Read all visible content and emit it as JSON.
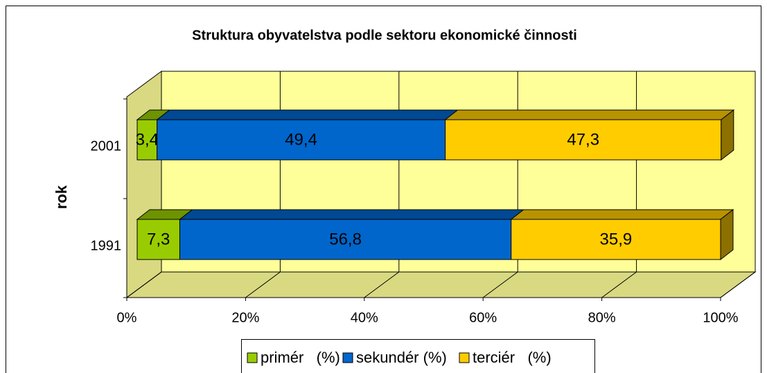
{
  "chart_data": {
    "type": "bar3d_stacked_horizontal",
    "title": "Struktura obyvatelstva podle sektoru ekonomické činnosti",
    "y_label": "rok",
    "categories": [
      "2001",
      "1991"
    ],
    "series": [
      {
        "name": "primér   (%)",
        "color": "#99cc00",
        "values": [
          3.4,
          7.3
        ],
        "value_labels": [
          "3,4",
          "7,3"
        ]
      },
      {
        "name": "sekundér (%)",
        "color": "#0066cc",
        "values": [
          49.4,
          56.8
        ],
        "value_labels": [
          "49,4",
          "56,8"
        ]
      },
      {
        "name": "terciér   (%)",
        "color": "#ffcc00",
        "values": [
          47.3,
          35.9
        ],
        "value_labels": [
          "47,3",
          "35,9"
        ]
      }
    ],
    "xlim": [
      0,
      100
    ],
    "xticks": [
      {
        "value": 0,
        "label": "0%"
      },
      {
        "value": 20,
        "label": "20%"
      },
      {
        "value": 40,
        "label": "40%"
      },
      {
        "value": 60,
        "label": "60%"
      },
      {
        "value": 80,
        "label": "80%"
      },
      {
        "value": 100,
        "label": "100%"
      }
    ],
    "grid": true,
    "legend": "bottom",
    "wall_color": "#ffff99"
  }
}
